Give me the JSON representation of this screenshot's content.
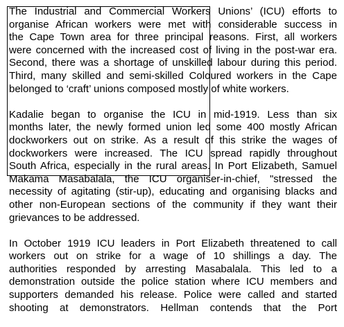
{
  "document": {
    "paragraphs": [
      {
        "lines": [
          "The Industrial and Commercial Workers Unions’ (ICU) efforts to",
          "organise African workers were met with considerable success in",
          "the Cape Town area for three principal reasons. First, all workers",
          "were concerned with the increased cost of living in the post-war era.",
          "Second, there was a shortage of unskilled labour during this period.",
          "Third, many skilled and semi-skilled Coloured workers in the Cape",
          "belonged to ‘craft’ unions composed mostly of white workers."
        ]
      },
      {
        "lines": [
          "Kadalie began to organise the ICU in mid-1919. Less than six",
          "months later, the newly formed union led some 400 mostly African",
          "dockworkers out on strike. As a result of this strike the wages of",
          "dockworkers were increased. The ICU spread rapidly throughout",
          "South Africa, especially in the rural areas. In Port Elizabeth, Samuel",
          "Makama Masabalala, the ICU organiser-in-chief, \"stressed the",
          "necessity of agitating (stir-up), educating and organising blacks and",
          "other non-European sections of the community if they want their",
          "grievances to be addressed."
        ]
      },
      {
        "lines": [
          "In October 1919 ICU leaders in Port Elizabeth threatened to call",
          "workers out on strike for a wage of 10 shillings a day. The",
          "authorities responded by arresting Masabalala. This led to a",
          "demonstration outside the police station where ICU members and",
          "supporters demanded his release. Police were called and started",
          "shooting at demonstrators. Hellman contends that the Port"
        ]
      }
    ]
  }
}
